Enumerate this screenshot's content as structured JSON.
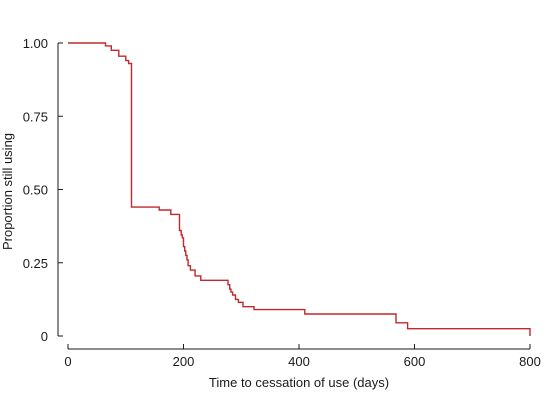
{
  "chart_data": {
    "type": "line",
    "title": "",
    "xlabel": "Time to cessation of use (days)",
    "ylabel": "Proportion still using",
    "xlim": [
      0,
      800
    ],
    "ylim": [
      0,
      1
    ],
    "x_ticks": [
      {
        "value": 0,
        "label": "0"
      },
      {
        "value": 200,
        "label": "200"
      },
      {
        "value": 400,
        "label": "400"
      },
      {
        "value": 600,
        "label": "600"
      },
      {
        "value": 800,
        "label": "800"
      }
    ],
    "y_ticks": [
      {
        "value": 0,
        "label": "0"
      },
      {
        "value": 0.25,
        "label": "0.25"
      },
      {
        "value": 0.5,
        "label": "0.50"
      },
      {
        "value": 0.75,
        "label": "0.75"
      },
      {
        "value": 1.0,
        "label": "1.00"
      }
    ],
    "grid": false,
    "legend": "none",
    "series": [
      {
        "color": "#c0282d",
        "step": true,
        "x": [
          0,
          65,
          75,
          88,
          100,
          105,
          110,
          113,
          158,
          178,
          193,
          196,
          198,
          200,
          202,
          204,
          206,
          208,
          212,
          220,
          230,
          277,
          280,
          282,
          285,
          290,
          295,
          303,
          322,
          410,
          568,
          588,
          800
        ],
        "y": [
          1.0,
          0.99,
          0.975,
          0.955,
          0.94,
          0.93,
          0.44,
          0.44,
          0.43,
          0.415,
          0.36,
          0.345,
          0.335,
          0.305,
          0.29,
          0.275,
          0.26,
          0.24,
          0.225,
          0.205,
          0.19,
          0.175,
          0.16,
          0.15,
          0.14,
          0.125,
          0.115,
          0.1,
          0.09,
          0.075,
          0.045,
          0.025,
          0.0
        ]
      }
    ]
  }
}
